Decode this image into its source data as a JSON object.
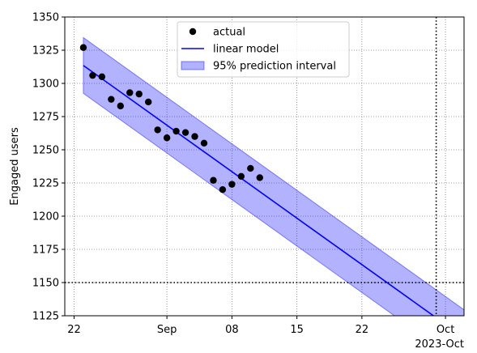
{
  "chart_data": {
    "type": "scatter",
    "title": "",
    "xlabel": "",
    "ylabel": "Engaged users",
    "x_axis": {
      "type": "date",
      "range": [
        "2023-08-21",
        "2023-10-03"
      ],
      "ticks": [
        {
          "date": "2023-08-22",
          "label": "22"
        },
        {
          "date": "2023-09-01",
          "label": "Sep"
        },
        {
          "date": "2023-09-08",
          "label": "08"
        },
        {
          "date": "2023-09-15",
          "label": "15"
        },
        {
          "date": "2023-09-22",
          "label": "22"
        },
        {
          "date": "2023-10-01",
          "label": "Oct"
        }
      ],
      "offset_label": "2023-Oct"
    },
    "y_axis": {
      "range": [
        1125,
        1350
      ],
      "ticks": [
        1125,
        1150,
        1175,
        1200,
        1225,
        1250,
        1275,
        1300,
        1325,
        1350
      ]
    },
    "grid": true,
    "legend_placement": "top-center",
    "series": [
      {
        "name": "actual",
        "kind": "points",
        "color": "#000000",
        "points": [
          {
            "x": "2023-08-23",
            "y": 1327
          },
          {
            "x": "2023-08-24",
            "y": 1306
          },
          {
            "x": "2023-08-25",
            "y": 1305
          },
          {
            "x": "2023-08-26",
            "y": 1288
          },
          {
            "x": "2023-08-27",
            "y": 1283
          },
          {
            "x": "2023-08-28",
            "y": 1293
          },
          {
            "x": "2023-08-29",
            "y": 1292
          },
          {
            "x": "2023-08-30",
            "y": 1286
          },
          {
            "x": "2023-08-31",
            "y": 1265
          },
          {
            "x": "2023-09-01",
            "y": 1259
          },
          {
            "x": "2023-09-02",
            "y": 1264
          },
          {
            "x": "2023-09-03",
            "y": 1263
          },
          {
            "x": "2023-09-04",
            "y": 1260
          },
          {
            "x": "2023-09-05",
            "y": 1255
          },
          {
            "x": "2023-09-06",
            "y": 1227
          },
          {
            "x": "2023-09-07",
            "y": 1220
          },
          {
            "x": "2023-09-08",
            "y": 1224
          },
          {
            "x": "2023-09-09",
            "y": 1230
          },
          {
            "x": "2023-09-10",
            "y": 1236
          },
          {
            "x": "2023-09-11",
            "y": 1229
          }
        ]
      },
      {
        "name": "linear model",
        "kind": "line",
        "color": "#0000ff",
        "points": [
          {
            "x": "2023-08-23",
            "y": 1313.5
          },
          {
            "x": "2023-09-30",
            "y": 1123.5
          }
        ]
      },
      {
        "name": "95% prediction interval",
        "kind": "band",
        "color": "#0000ff",
        "opacity": 0.3,
        "points": [
          {
            "x": "2023-08-23",
            "lower": 1292.5,
            "upper": 1334.5
          },
          {
            "x": "2023-10-03",
            "lower": 1087.5,
            "upper": 1129.5
          }
        ]
      }
    ],
    "reference_lines": [
      {
        "orientation": "horizontal",
        "y": 1150,
        "style": "dotted",
        "color": "#000000"
      },
      {
        "orientation": "vertical",
        "x": "2023-09-30",
        "style": "dotted",
        "color": "#000000"
      }
    ]
  }
}
